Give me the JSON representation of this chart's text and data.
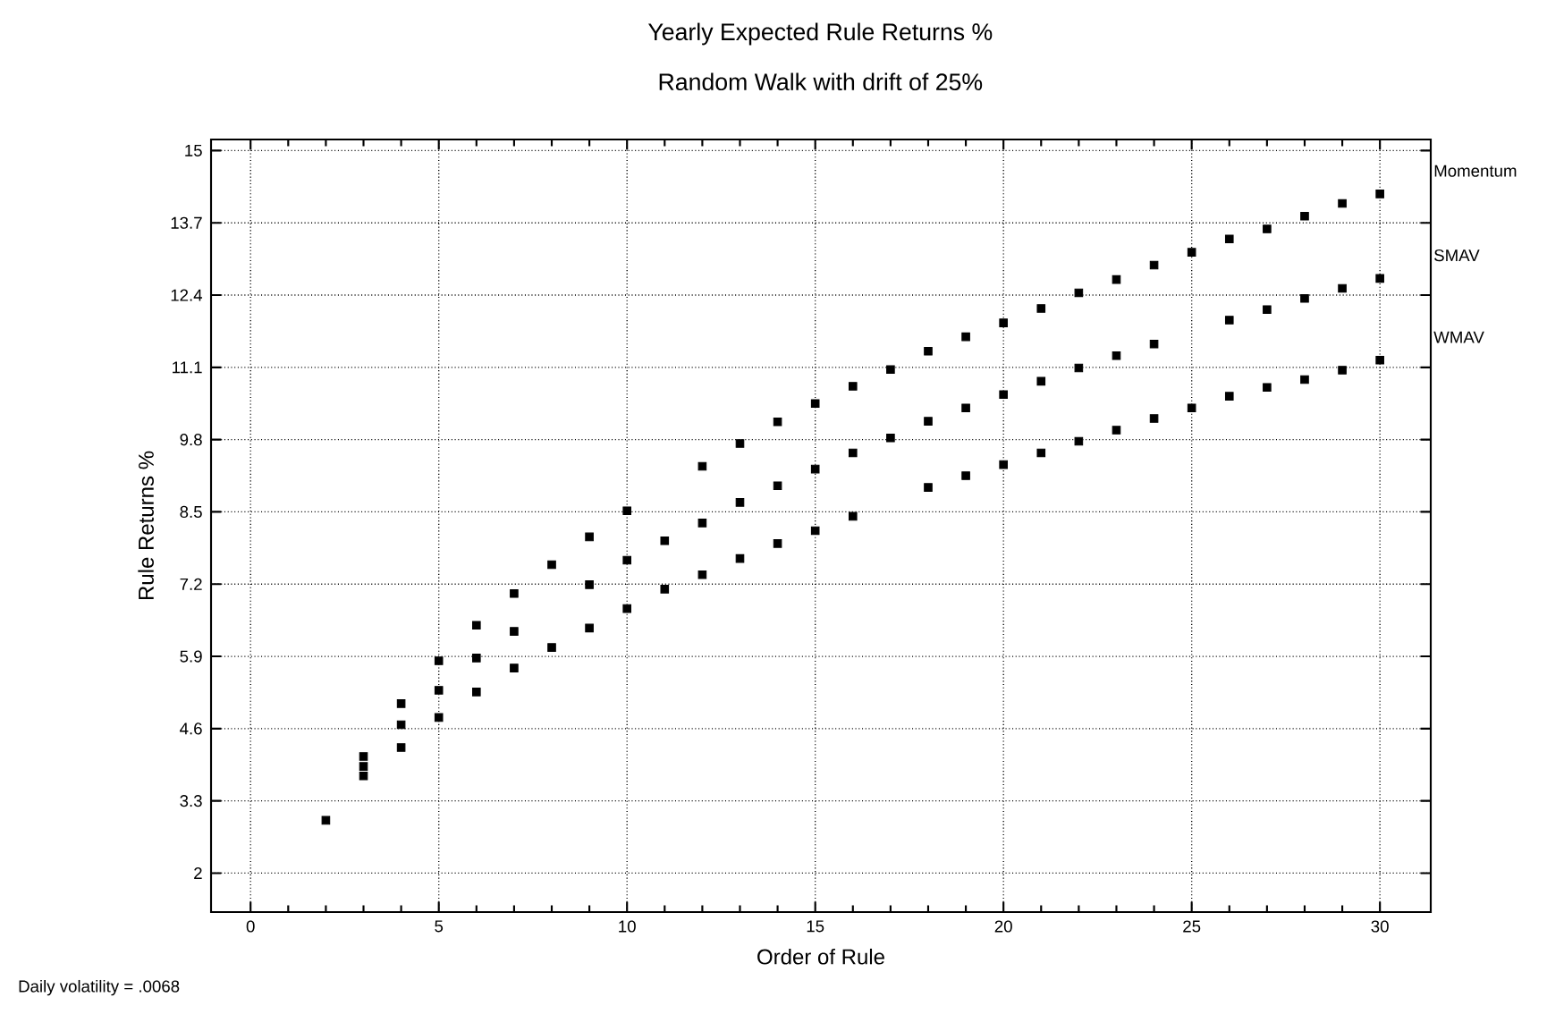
{
  "chart_data": {
    "type": "scatter",
    "title": "Yearly Expected Rule Returns %",
    "subtitle": "Random Walk with drift of 25%",
    "xlabel": "Order of Rule",
    "ylabel": "Rule Returns %",
    "annotations": [
      "Daily volatility = .0068"
    ],
    "x": [
      2,
      3,
      4,
      5,
      6,
      7,
      8,
      9,
      10,
      11,
      12,
      13,
      14,
      15,
      16,
      17,
      18,
      19,
      20,
      21,
      22,
      23,
      24,
      25,
      26,
      27,
      28,
      29,
      30
    ],
    "series": [
      {
        "name": "Momentum",
        "color": "#000000",
        "values": [
          2.95,
          4.1,
          5.05,
          5.82,
          6.46,
          7.03,
          7.55,
          8.05,
          8.52,
          null,
          9.32,
          9.73,
          10.12,
          10.45,
          10.76,
          11.06,
          11.39,
          11.65,
          11.9,
          12.16,
          12.44,
          12.68,
          12.94,
          13.17,
          13.41,
          13.59,
          13.82,
          14.05,
          14.22
        ]
      },
      {
        "name": "SMAV",
        "color": "#000000",
        "values": [
          null,
          3.92,
          4.67,
          5.29,
          5.87,
          6.35,
          null,
          7.19,
          7.63,
          7.98,
          8.3,
          8.67,
          8.97,
          9.27,
          9.56,
          9.83,
          10.13,
          10.37,
          10.61,
          10.85,
          11.09,
          11.31,
          11.52,
          null,
          11.95,
          12.14,
          12.34,
          12.52,
          12.7
        ]
      },
      {
        "name": "WMAV",
        "color": "#000000",
        "values": [
          null,
          3.75,
          4.26,
          4.8,
          5.26,
          5.69,
          6.06,
          6.41,
          6.76,
          7.11,
          7.37,
          7.66,
          7.93,
          8.16,
          8.42,
          null,
          8.94,
          9.15,
          9.35,
          9.56,
          9.77,
          9.97,
          10.18,
          10.37,
          10.58,
          10.74,
          10.88,
          11.05,
          11.23
        ]
      }
    ],
    "xlim": [
      -1.05,
      31.35
    ],
    "xticks": [
      0,
      5,
      10,
      15,
      20,
      25,
      30
    ],
    "ylim": [
      1.3,
      15.2
    ],
    "yticks": [
      2,
      3.3,
      4.6,
      5.9,
      7.2,
      8.5,
      9.8,
      11.1,
      12.4,
      13.7,
      15
    ],
    "grid": true,
    "marker": "square",
    "legend": "right"
  }
}
